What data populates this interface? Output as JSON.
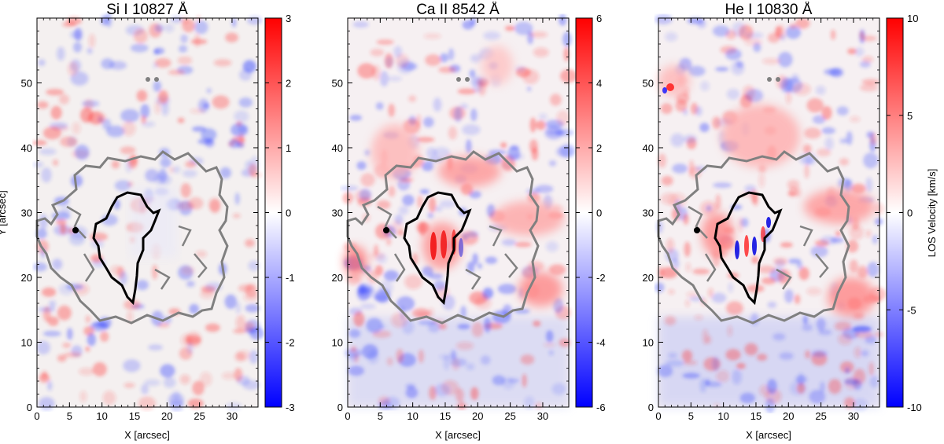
{
  "chart_data": [
    {
      "type": "heatmap",
      "title": "Si I 10827 Å",
      "xlabel": "X [arcsec]",
      "ylabel": "Y [arcsec]",
      "xlim": [
        0,
        34
      ],
      "ylim": [
        0,
        60
      ],
      "xticks": [
        "0",
        "5",
        "10",
        "15",
        "20",
        "25",
        "30"
      ],
      "yticks": [
        "0",
        "10",
        "20",
        "30",
        "40",
        "50"
      ],
      "colorbar": {
        "label": "",
        "range": [
          -3,
          3
        ],
        "ticks": [
          "3",
          "2",
          "1",
          "0",
          "-1",
          "-2",
          "-3"
        ],
        "colors": [
          "#0000ff",
          "#ffffff",
          "#ff0000"
        ]
      },
      "features": [
        "penumbra-contour",
        "umbra-contour",
        "pore-marker"
      ]
    },
    {
      "type": "heatmap",
      "title": "Ca II 8542 Å",
      "xlabel": "X [arcsec]",
      "ylabel": "",
      "xlim": [
        0,
        34
      ],
      "ylim": [
        0,
        60
      ],
      "xticks": [
        "0",
        "5",
        "10",
        "15",
        "20",
        "25",
        "30"
      ],
      "yticks": [
        "0",
        "10",
        "20",
        "30",
        "40",
        "50"
      ],
      "colorbar": {
        "label": "",
        "range": [
          -6,
          6
        ],
        "ticks": [
          "6",
          "4",
          "2",
          "0",
          "-2",
          "-4",
          "-6"
        ],
        "colors": [
          "#0000ff",
          "#ffffff",
          "#ff0000"
        ]
      },
      "features": [
        "penumbra-contour",
        "umbra-contour",
        "pore-marker"
      ]
    },
    {
      "type": "heatmap",
      "title": "He I 10830 Å",
      "xlabel": "X [arcsec]",
      "ylabel": "",
      "xlim": [
        0,
        34
      ],
      "ylim": [
        0,
        60
      ],
      "xticks": [
        "0",
        "5",
        "10",
        "15",
        "20",
        "25",
        "30"
      ],
      "yticks": [
        "0",
        "10",
        "20",
        "30",
        "40",
        "50"
      ],
      "colorbar": {
        "label": "LOS Velocity [km/s]",
        "range": [
          -10,
          10
        ],
        "ticks": [
          "10",
          "5",
          "0",
          "-5",
          "-10"
        ],
        "colors": [
          "#0000ff",
          "#ffffff",
          "#ff0000"
        ]
      },
      "features": [
        "penumbra-contour",
        "umbra-contour",
        "pore-marker"
      ]
    }
  ]
}
